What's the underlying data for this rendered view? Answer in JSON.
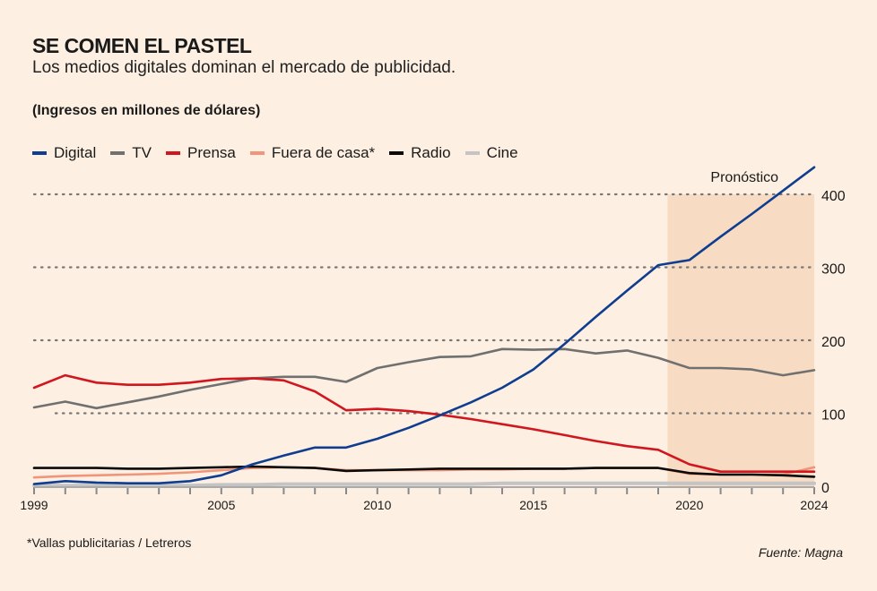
{
  "header": {
    "title": "SE COMEN EL PASTEL",
    "subtitle": "Los medios digitales dominan el mercado de publicidad.",
    "unit": "(Ingresos en millones de dólares)"
  },
  "footer": {
    "footnote": "*Vallas publicitarias / Letreros",
    "source": "Fuente: Magna"
  },
  "chart_data": {
    "type": "line",
    "title": "SE COMEN EL PASTEL",
    "subtitle": "Los medios digitales dominan el mercado de publicidad.",
    "ylabel": "Ingresos en millones de dólares",
    "xlabel": "",
    "xlim": [
      1999,
      2024
    ],
    "ylim": [
      0,
      400
    ],
    "x_tick_labels": [
      "1999",
      "2005",
      "2010",
      "2015",
      "2020",
      "2024"
    ],
    "y_tick_labels": [
      "0",
      "100",
      "200",
      "300",
      "400"
    ],
    "y_ticks": [
      0,
      100,
      200,
      300,
      400
    ],
    "grid": "horizontal dotted",
    "legend_position": "top-left",
    "annotation": {
      "label": "Pronóstico",
      "x_range": [
        2019.3,
        2024
      ]
    },
    "x": [
      1999,
      2000,
      2001,
      2002,
      2003,
      2004,
      2005,
      2006,
      2007,
      2008,
      2009,
      2010,
      2011,
      2012,
      2013,
      2014,
      2015,
      2016,
      2017,
      2018,
      2019,
      2020,
      2021,
      2022,
      2023,
      2024
    ],
    "series": [
      {
        "name": "Digital",
        "color": "#0f3d8f",
        "values": [
          3,
          7,
          5,
          4,
          4,
          7,
          15,
          30,
          42,
          53,
          53,
          65,
          80,
          97,
          115,
          135,
          160,
          195,
          232,
          268,
          303,
          310,
          342,
          373,
          405,
          437
        ]
      },
      {
        "name": "TV",
        "color": "#707070",
        "values": [
          108,
          116,
          107,
          115,
          123,
          132,
          140,
          148,
          150,
          150,
          143,
          162,
          170,
          177,
          178,
          188,
          187,
          188,
          182,
          186,
          176,
          162,
          162,
          160,
          152,
          159
        ]
      },
      {
        "name": "Prensa",
        "color": "#d0161e",
        "values": [
          135,
          152,
          142,
          139,
          139,
          142,
          147,
          148,
          145,
          130,
          104,
          106,
          103,
          98,
          92,
          85,
          78,
          70,
          62,
          55,
          50,
          30,
          20,
          20,
          20,
          20
        ]
      },
      {
        "name": "Fuera de casa*",
        "color": "#f0957a",
        "values": [
          12,
          14,
          15,
          16,
          17,
          19,
          22,
          25,
          26,
          25,
          22,
          22,
          22,
          22,
          23,
          23,
          24,
          24,
          25,
          25,
          25,
          17,
          16,
          16,
          16,
          26
        ]
      },
      {
        "name": "Radio",
        "color": "#0a0a0a",
        "values": [
          25,
          25,
          25,
          24,
          24,
          25,
          26,
          27,
          26,
          25,
          21,
          22,
          23,
          24,
          24,
          24,
          24,
          24,
          25,
          25,
          25,
          18,
          16,
          16,
          15,
          13
        ]
      },
      {
        "name": "Cine",
        "color": "#c4c4c4",
        "values": [
          1,
          1,
          1,
          1,
          1,
          1,
          2,
          2,
          3,
          3,
          3,
          3,
          3,
          3,
          3,
          4,
          4,
          4,
          4,
          4,
          4,
          4,
          4,
          4,
          4,
          4
        ]
      }
    ]
  }
}
